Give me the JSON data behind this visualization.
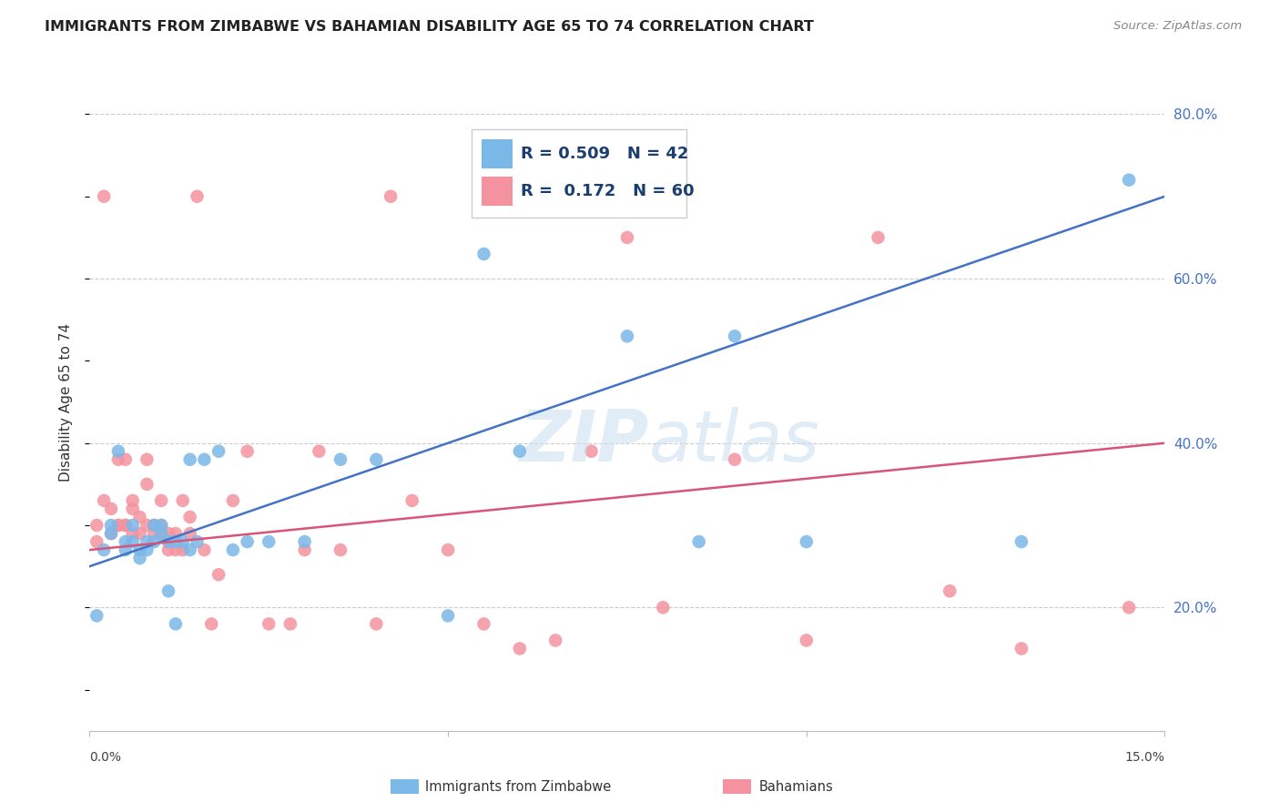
{
  "title": "IMMIGRANTS FROM ZIMBABWE VS BAHAMIAN DISABILITY AGE 65 TO 74 CORRELATION CHART",
  "source": "Source: ZipAtlas.com",
  "ylabel": "Disability Age 65 to 74",
  "ylabel_right_ticks": [
    "20.0%",
    "40.0%",
    "60.0%",
    "80.0%"
  ],
  "ylabel_right_vals": [
    0.2,
    0.4,
    0.6,
    0.8
  ],
  "legend1_r": "0.509",
  "legend1_n": "42",
  "legend2_r": "0.172",
  "legend2_n": "60",
  "xlim": [
    0.0,
    0.15
  ],
  "ylim": [
    0.05,
    0.85
  ],
  "blue_color": "#7ab8e8",
  "pink_color": "#f4939f",
  "blue_line_color": "#4472c4",
  "pink_line_color": "#d9547a",
  "legend_r_color": "#1a3f6f",
  "grid_color": "#cccccc",
  "watermark": "ZIPatlas",
  "blue_points_x": [
    0.001,
    0.002,
    0.003,
    0.003,
    0.004,
    0.005,
    0.005,
    0.006,
    0.006,
    0.007,
    0.007,
    0.008,
    0.008,
    0.009,
    0.009,
    0.01,
    0.01,
    0.011,
    0.011,
    0.012,
    0.012,
    0.013,
    0.014,
    0.014,
    0.015,
    0.016,
    0.018,
    0.02,
    0.022,
    0.025,
    0.03,
    0.035,
    0.04,
    0.05,
    0.055,
    0.06,
    0.075,
    0.085,
    0.09,
    0.1,
    0.13,
    0.145
  ],
  "blue_points_y": [
    0.19,
    0.27,
    0.29,
    0.3,
    0.39,
    0.27,
    0.28,
    0.28,
    0.3,
    0.26,
    0.27,
    0.28,
    0.27,
    0.28,
    0.3,
    0.29,
    0.3,
    0.22,
    0.28,
    0.18,
    0.28,
    0.28,
    0.27,
    0.38,
    0.28,
    0.38,
    0.39,
    0.27,
    0.28,
    0.28,
    0.28,
    0.38,
    0.38,
    0.19,
    0.63,
    0.39,
    0.53,
    0.28,
    0.53,
    0.28,
    0.28,
    0.72
  ],
  "pink_points_x": [
    0.001,
    0.001,
    0.002,
    0.002,
    0.003,
    0.003,
    0.004,
    0.004,
    0.004,
    0.005,
    0.005,
    0.005,
    0.006,
    0.006,
    0.006,
    0.007,
    0.007,
    0.008,
    0.008,
    0.008,
    0.009,
    0.009,
    0.01,
    0.01,
    0.01,
    0.011,
    0.011,
    0.012,
    0.012,
    0.013,
    0.013,
    0.014,
    0.014,
    0.015,
    0.016,
    0.017,
    0.018,
    0.02,
    0.022,
    0.025,
    0.028,
    0.03,
    0.032,
    0.035,
    0.04,
    0.042,
    0.045,
    0.05,
    0.055,
    0.06,
    0.065,
    0.07,
    0.075,
    0.08,
    0.09,
    0.1,
    0.11,
    0.12,
    0.13,
    0.145
  ],
  "pink_points_y": [
    0.3,
    0.28,
    0.33,
    0.7,
    0.32,
    0.29,
    0.3,
    0.3,
    0.38,
    0.3,
    0.3,
    0.38,
    0.33,
    0.32,
    0.29,
    0.31,
    0.29,
    0.38,
    0.35,
    0.3,
    0.3,
    0.29,
    0.33,
    0.29,
    0.3,
    0.29,
    0.27,
    0.29,
    0.27,
    0.27,
    0.33,
    0.31,
    0.29,
    0.7,
    0.27,
    0.18,
    0.24,
    0.33,
    0.39,
    0.18,
    0.18,
    0.27,
    0.39,
    0.27,
    0.18,
    0.7,
    0.33,
    0.27,
    0.18,
    0.15,
    0.16,
    0.39,
    0.65,
    0.2,
    0.38,
    0.16,
    0.65,
    0.22,
    0.15,
    0.2
  ]
}
